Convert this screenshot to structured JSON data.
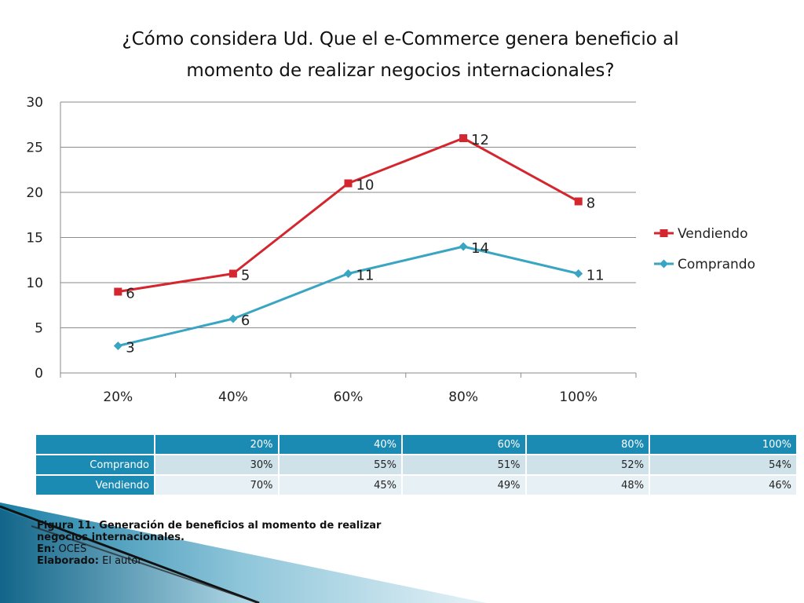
{
  "chart_data": {
    "type": "line",
    "title_line1": "¿Cómo considera Ud. Que el e-Commerce genera beneficio al",
    "title_line2": "momento de realizar negocios internacionales?",
    "categories": [
      "20%",
      "40%",
      "60%",
      "80%",
      "100%"
    ],
    "ylim": [
      0,
      30
    ],
    "yticks": [
      "0",
      "5",
      "10",
      "15",
      "20",
      "25",
      "30"
    ],
    "grid": true,
    "legend_position": "right",
    "series": [
      {
        "name": "Vendiendo",
        "values": [
          9,
          11,
          21,
          26,
          19
        ],
        "labels": [
          "6",
          "5",
          "10",
          "12",
          "8"
        ],
        "color": "#d4262e",
        "marker": "square"
      },
      {
        "name": "Comprando",
        "values": [
          3,
          6,
          11,
          14,
          11
        ],
        "labels": [
          "3",
          "6",
          "11",
          "14",
          "11"
        ],
        "color": "#3aa5c2",
        "marker": "diamond"
      }
    ]
  },
  "table": {
    "columns": [
      "20%",
      "40%",
      "60%",
      "80%",
      "100%"
    ],
    "rows": [
      {
        "label": "Comprando",
        "values": [
          "30%",
          "55%",
          "51%",
          "52%",
          "54%"
        ]
      },
      {
        "label": "Vendiendo",
        "values": [
          "70%",
          "45%",
          "49%",
          "48%",
          "46%"
        ]
      }
    ]
  },
  "caption": {
    "figure_text": "Figura 11. Generación de beneficios al momento de realizar negocios internacionales.",
    "source_label": "En:",
    "source_value": "OCES",
    "author_label": "Elaborado:",
    "author_value": "El autor"
  },
  "colors": {
    "table_header": "#1b8bb4",
    "table_row_dark": "#cfe2ea",
    "table_row_light": "#e7f0f4",
    "gridline": "#8a8a8a"
  }
}
